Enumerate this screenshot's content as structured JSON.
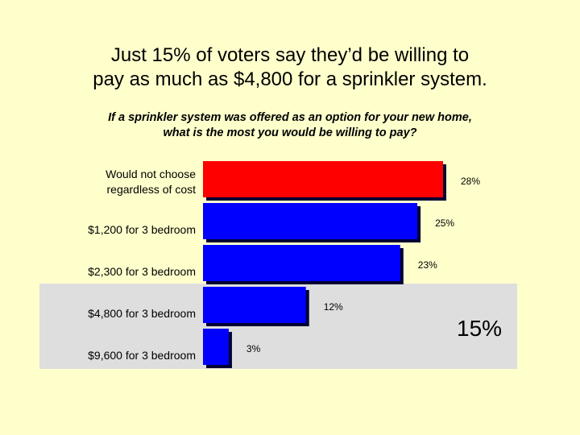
{
  "slide": {
    "title_line1": "Just 15% of voters say they’d be willing to",
    "title_line2": "pay as much as $4,800 for a sprinkler system.",
    "subtitle_line1": "If a sprinkler system was offered as an option for your new home,",
    "subtitle_line2": "what is the most you would be willing to pay?",
    "callout": "15%"
  },
  "colors": {
    "background": "#FFFFCC",
    "highlight": "#DEDEDE",
    "bar_primary": "#FF0000",
    "bar_secondary": "#0000FF",
    "bar_edge": "#000033"
  },
  "chart_data": {
    "type": "bar",
    "orientation": "horizontal",
    "categories": [
      [
        "Would not choose",
        "regardless of cost"
      ],
      [
        "$1,200 for 3 bedroom"
      ],
      [
        "$2,300 for 3 bedroom"
      ],
      [
        "$4,800 for 3 bedroom"
      ],
      [
        "$9,600 for 3 bedroom"
      ]
    ],
    "values": [
      28,
      25,
      23,
      12,
      3
    ],
    "value_labels": [
      "28%",
      "25%",
      "23%",
      "12%",
      "3%"
    ],
    "bar_colors": [
      "#FF0000",
      "#0000FF",
      "#0000FF",
      "#0000FF",
      "#0000FF"
    ],
    "xlim": [
      0,
      28
    ]
  }
}
